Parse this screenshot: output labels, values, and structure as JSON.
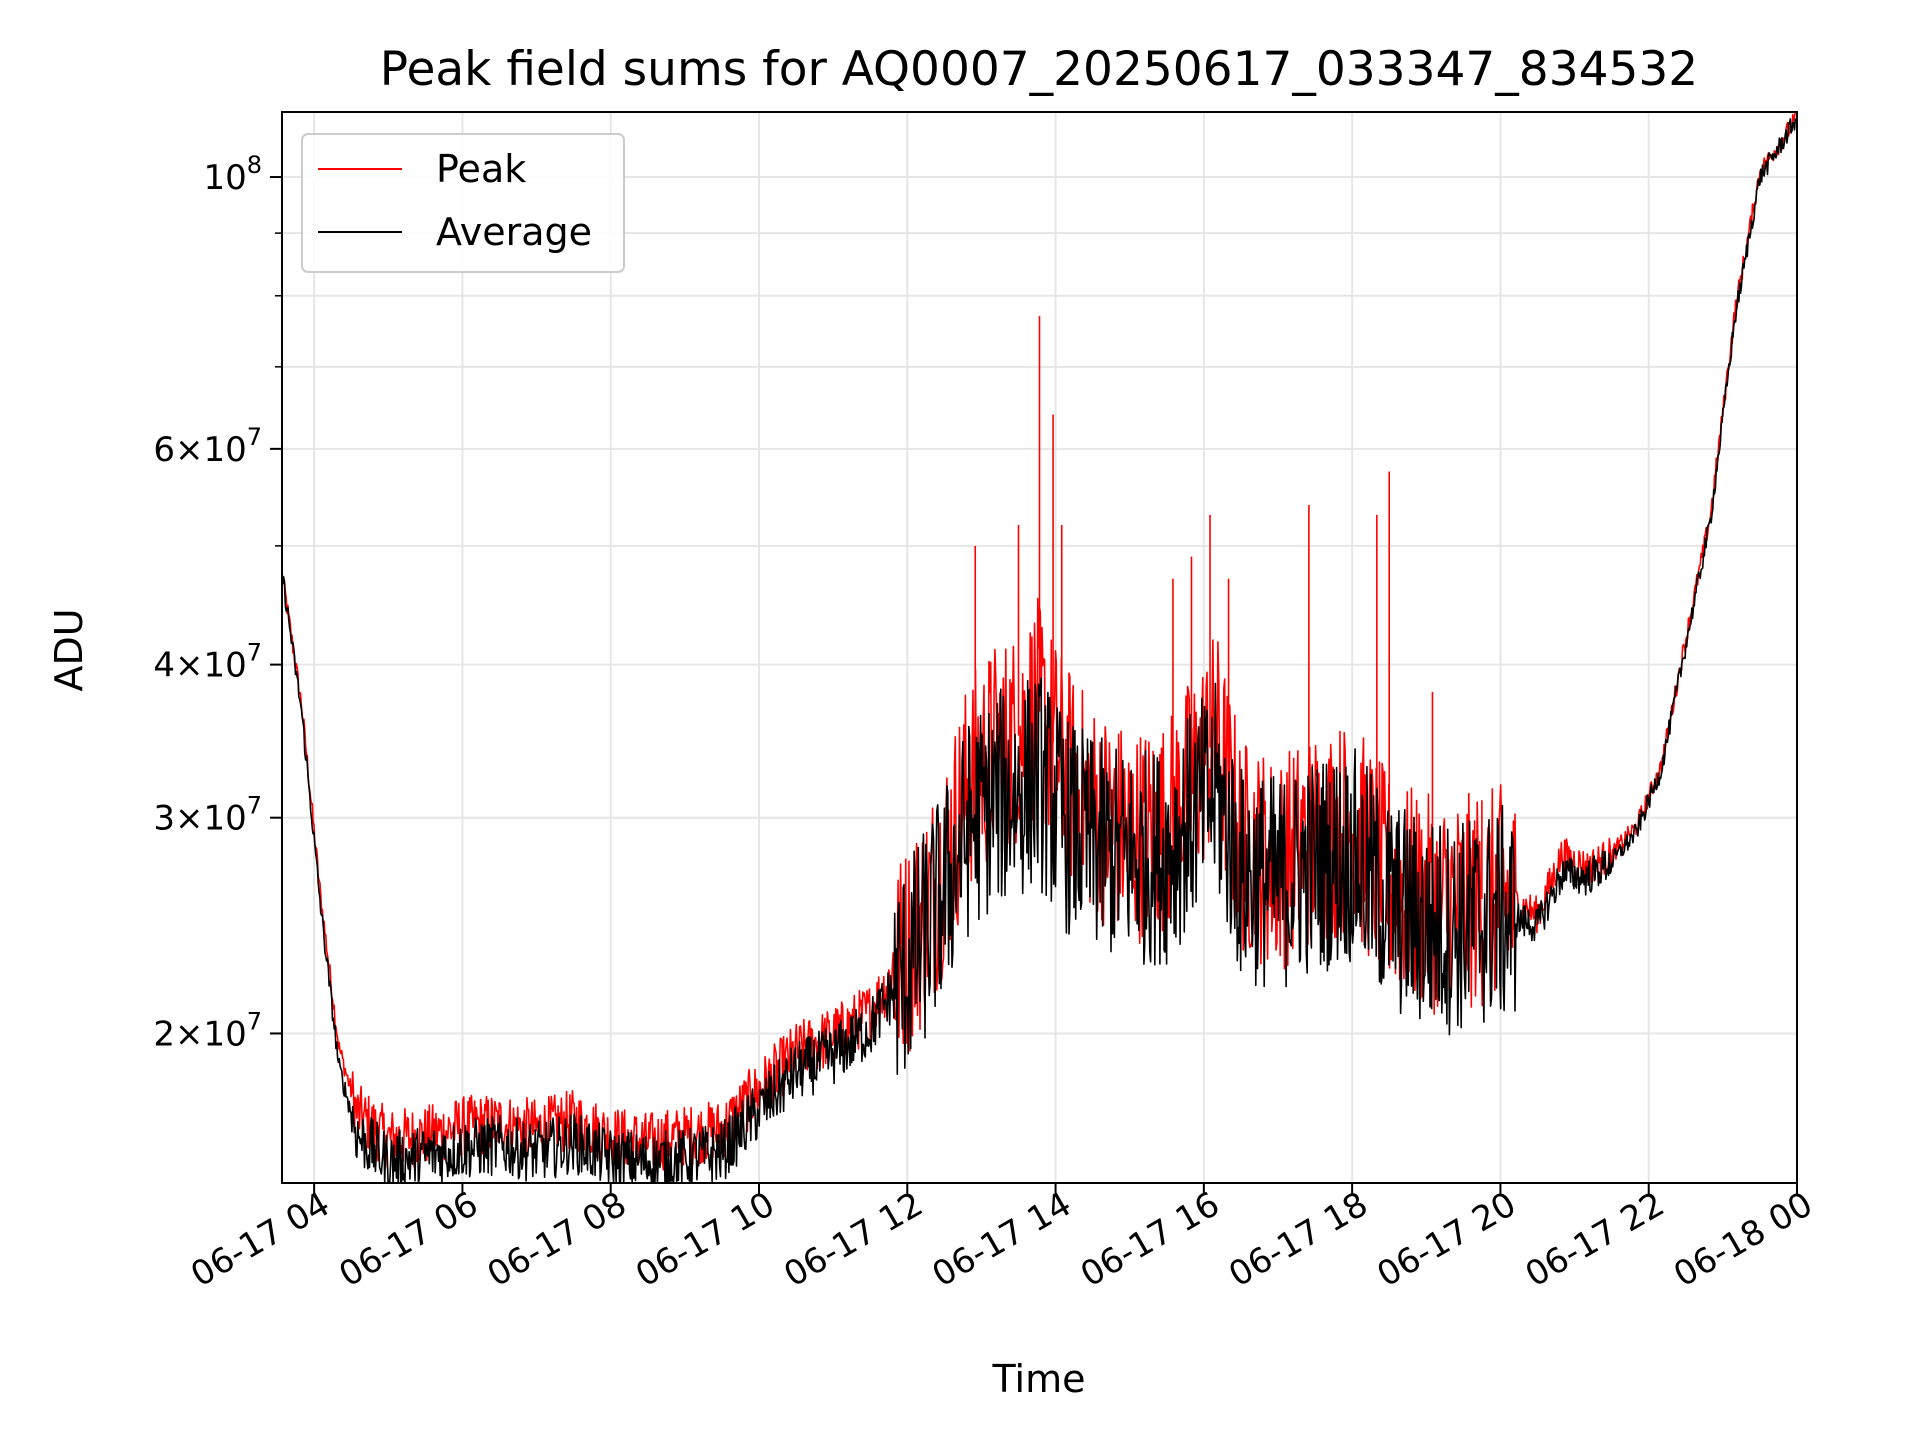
{
  "chart_data": {
    "type": "line",
    "title": "Peak field sums for AQ0007_20250617_033347_834532",
    "xlabel": "Time",
    "ylabel": "ADU",
    "y_scale": "log",
    "xlim": [
      "06-17 03:34",
      "06-18 00:00"
    ],
    "ylim": [
      15100000,
      113000000
    ],
    "grid": true,
    "legend_position": "top-left",
    "x_ticks": [
      "06-17 04",
      "06-17 06",
      "06-17 08",
      "06-17 10",
      "06-17 12",
      "06-17 14",
      "06-17 16",
      "06-17 18",
      "06-17 20",
      "06-17 22",
      "06-18 00"
    ],
    "y_ticks": [
      {
        "value": 20000000,
        "mantissa": "2",
        "exponent": "7"
      },
      {
        "value": 30000000,
        "mantissa": "3",
        "exponent": "7"
      },
      {
        "value": 40000000,
        "mantissa": "4",
        "exponent": "7"
      },
      {
        "value": 60000000,
        "mantissa": "6",
        "exponent": "7"
      },
      {
        "value": 100000000,
        "mantissa": "",
        "exponent": "8"
      }
    ],
    "series": [
      {
        "name": "Peak",
        "color": "#ff0000",
        "x": [
          "06-17 03:34",
          "06-17 03:50",
          "06-17 04:05",
          "06-17 04:20",
          "06-17 04:35",
          "06-17 05:00",
          "06-17 05:30",
          "06-17 06:00",
          "06-17 06:30",
          "06-17 07:00",
          "06-17 07:30",
          "06-17 08:00",
          "06-17 08:30",
          "06-17 09:00",
          "06-17 09:30",
          "06-17 10:00",
          "06-17 10:30",
          "06-17 11:00",
          "06-17 11:30",
          "06-17 11:50",
          "06-17 12:10",
          "06-17 12:30",
          "06-17 12:50",
          "06-17 13:10",
          "06-17 13:30",
          "06-17 13:45",
          "06-17 14:10",
          "06-17 14:30",
          "06-17 15:00",
          "06-17 15:30",
          "06-17 15:50",
          "06-17 16:10",
          "06-17 16:30",
          "06-17 17:00",
          "06-17 17:30",
          "06-17 18:00",
          "06-17 18:30",
          "06-17 19:00",
          "06-17 19:30",
          "06-17 20:00",
          "06-17 20:30",
          "06-17 20:50",
          "06-17 21:10",
          "06-17 21:30",
          "06-17 21:50",
          "06-17 22:10",
          "06-17 22:30",
          "06-17 22:50",
          "06-17 23:10",
          "06-17 23:30",
          "06-17 23:50",
          "06-18 00:00"
        ],
        "y": [
          47500000,
          37000000,
          26000000,
          19500000,
          17200000,
          16400000,
          16500000,
          16800000,
          16900000,
          16700000,
          17000000,
          16500000,
          16300000,
          16500000,
          16700000,
          18000000,
          19300000,
          19900000,
          20800000,
          22500000,
          24500000,
          27500000,
          32000000,
          34000000,
          35000000,
          37000000,
          32500000,
          30500000,
          29000000,
          29500000,
          32000000,
          35000000,
          28500000,
          27500000,
          29000000,
          29500000,
          26500000,
          25500000,
          25500000,
          26000000,
          25000000,
          28000000,
          27300000,
          28000000,
          29500000,
          33000000,
          42000000,
          53000000,
          78000000,
          101000000,
          108000000,
          112000000
        ],
        "spikes": [
          {
            "x": "06-17 12:55",
            "y": 50000000
          },
          {
            "x": "06-17 13:30",
            "y": 52000000
          },
          {
            "x": "06-17 13:47",
            "y": 77000000
          },
          {
            "x": "06-17 13:58",
            "y": 64000000
          },
          {
            "x": "06-17 14:05",
            "y": 52000000
          },
          {
            "x": "06-17 15:35",
            "y": 47000000
          },
          {
            "x": "06-17 15:50",
            "y": 49000000
          },
          {
            "x": "06-17 16:05",
            "y": 53000000
          },
          {
            "x": "06-17 16:20",
            "y": 47000000
          },
          {
            "x": "06-17 17:25",
            "y": 54000000
          },
          {
            "x": "06-17 18:20",
            "y": 53000000
          },
          {
            "x": "06-17 18:30",
            "y": 57500000
          },
          {
            "x": "06-17 19:05",
            "y": 38000000
          },
          {
            "x": "06-17 19:45",
            "y": 31000000
          }
        ]
      },
      {
        "name": "Average",
        "color": "#000000",
        "x": [
          "06-17 03:34",
          "06-17 03:50",
          "06-17 04:05",
          "06-17 04:20",
          "06-17 04:35",
          "06-17 05:00",
          "06-17 05:30",
          "06-17 06:00",
          "06-17 06:30",
          "06-17 07:00",
          "06-17 07:30",
          "06-17 08:00",
          "06-17 08:30",
          "06-17 09:00",
          "06-17 09:30",
          "06-17 10:00",
          "06-17 10:30",
          "06-17 11:00",
          "06-17 11:30",
          "06-17 11:50",
          "06-17 12:10",
          "06-17 12:30",
          "06-17 12:50",
          "06-17 13:10",
          "06-17 13:30",
          "06-17 13:45",
          "06-17 14:10",
          "06-17 14:30",
          "06-17 15:00",
          "06-17 15:30",
          "06-17 15:50",
          "06-17 16:10",
          "06-17 16:30",
          "06-17 17:00",
          "06-17 17:30",
          "06-17 18:00",
          "06-17 18:30",
          "06-17 19:00",
          "06-17 19:30",
          "06-17 20:00",
          "06-17 20:30",
          "06-17 20:50",
          "06-17 21:10",
          "06-17 21:30",
          "06-17 21:50",
          "06-17 22:10",
          "06-17 22:30",
          "06-17 22:50",
          "06-17 23:10",
          "06-17 23:30",
          "06-17 23:50",
          "06-18 00:00"
        ],
        "y": [
          47500000,
          36500000,
          25500000,
          18800000,
          16500000,
          15700000,
          15900000,
          16100000,
          16200000,
          16000000,
          16300000,
          15800000,
          15700000,
          15800000,
          16000000,
          17300000,
          18600000,
          19200000,
          20200000,
          21800000,
          23500000,
          26000000,
          29500000,
          31000000,
          31500000,
          32500000,
          29500000,
          28500000,
          27800000,
          28000000,
          30000000,
          31500000,
          27000000,
          26500000,
          27500000,
          28000000,
          25500000,
          24500000,
          24500000,
          25000000,
          24500000,
          27000000,
          26800000,
          27600000,
          29200000,
          32800000,
          41500000,
          52500000,
          77000000,
          100000000,
          107500000,
          112000000
        ]
      }
    ]
  }
}
